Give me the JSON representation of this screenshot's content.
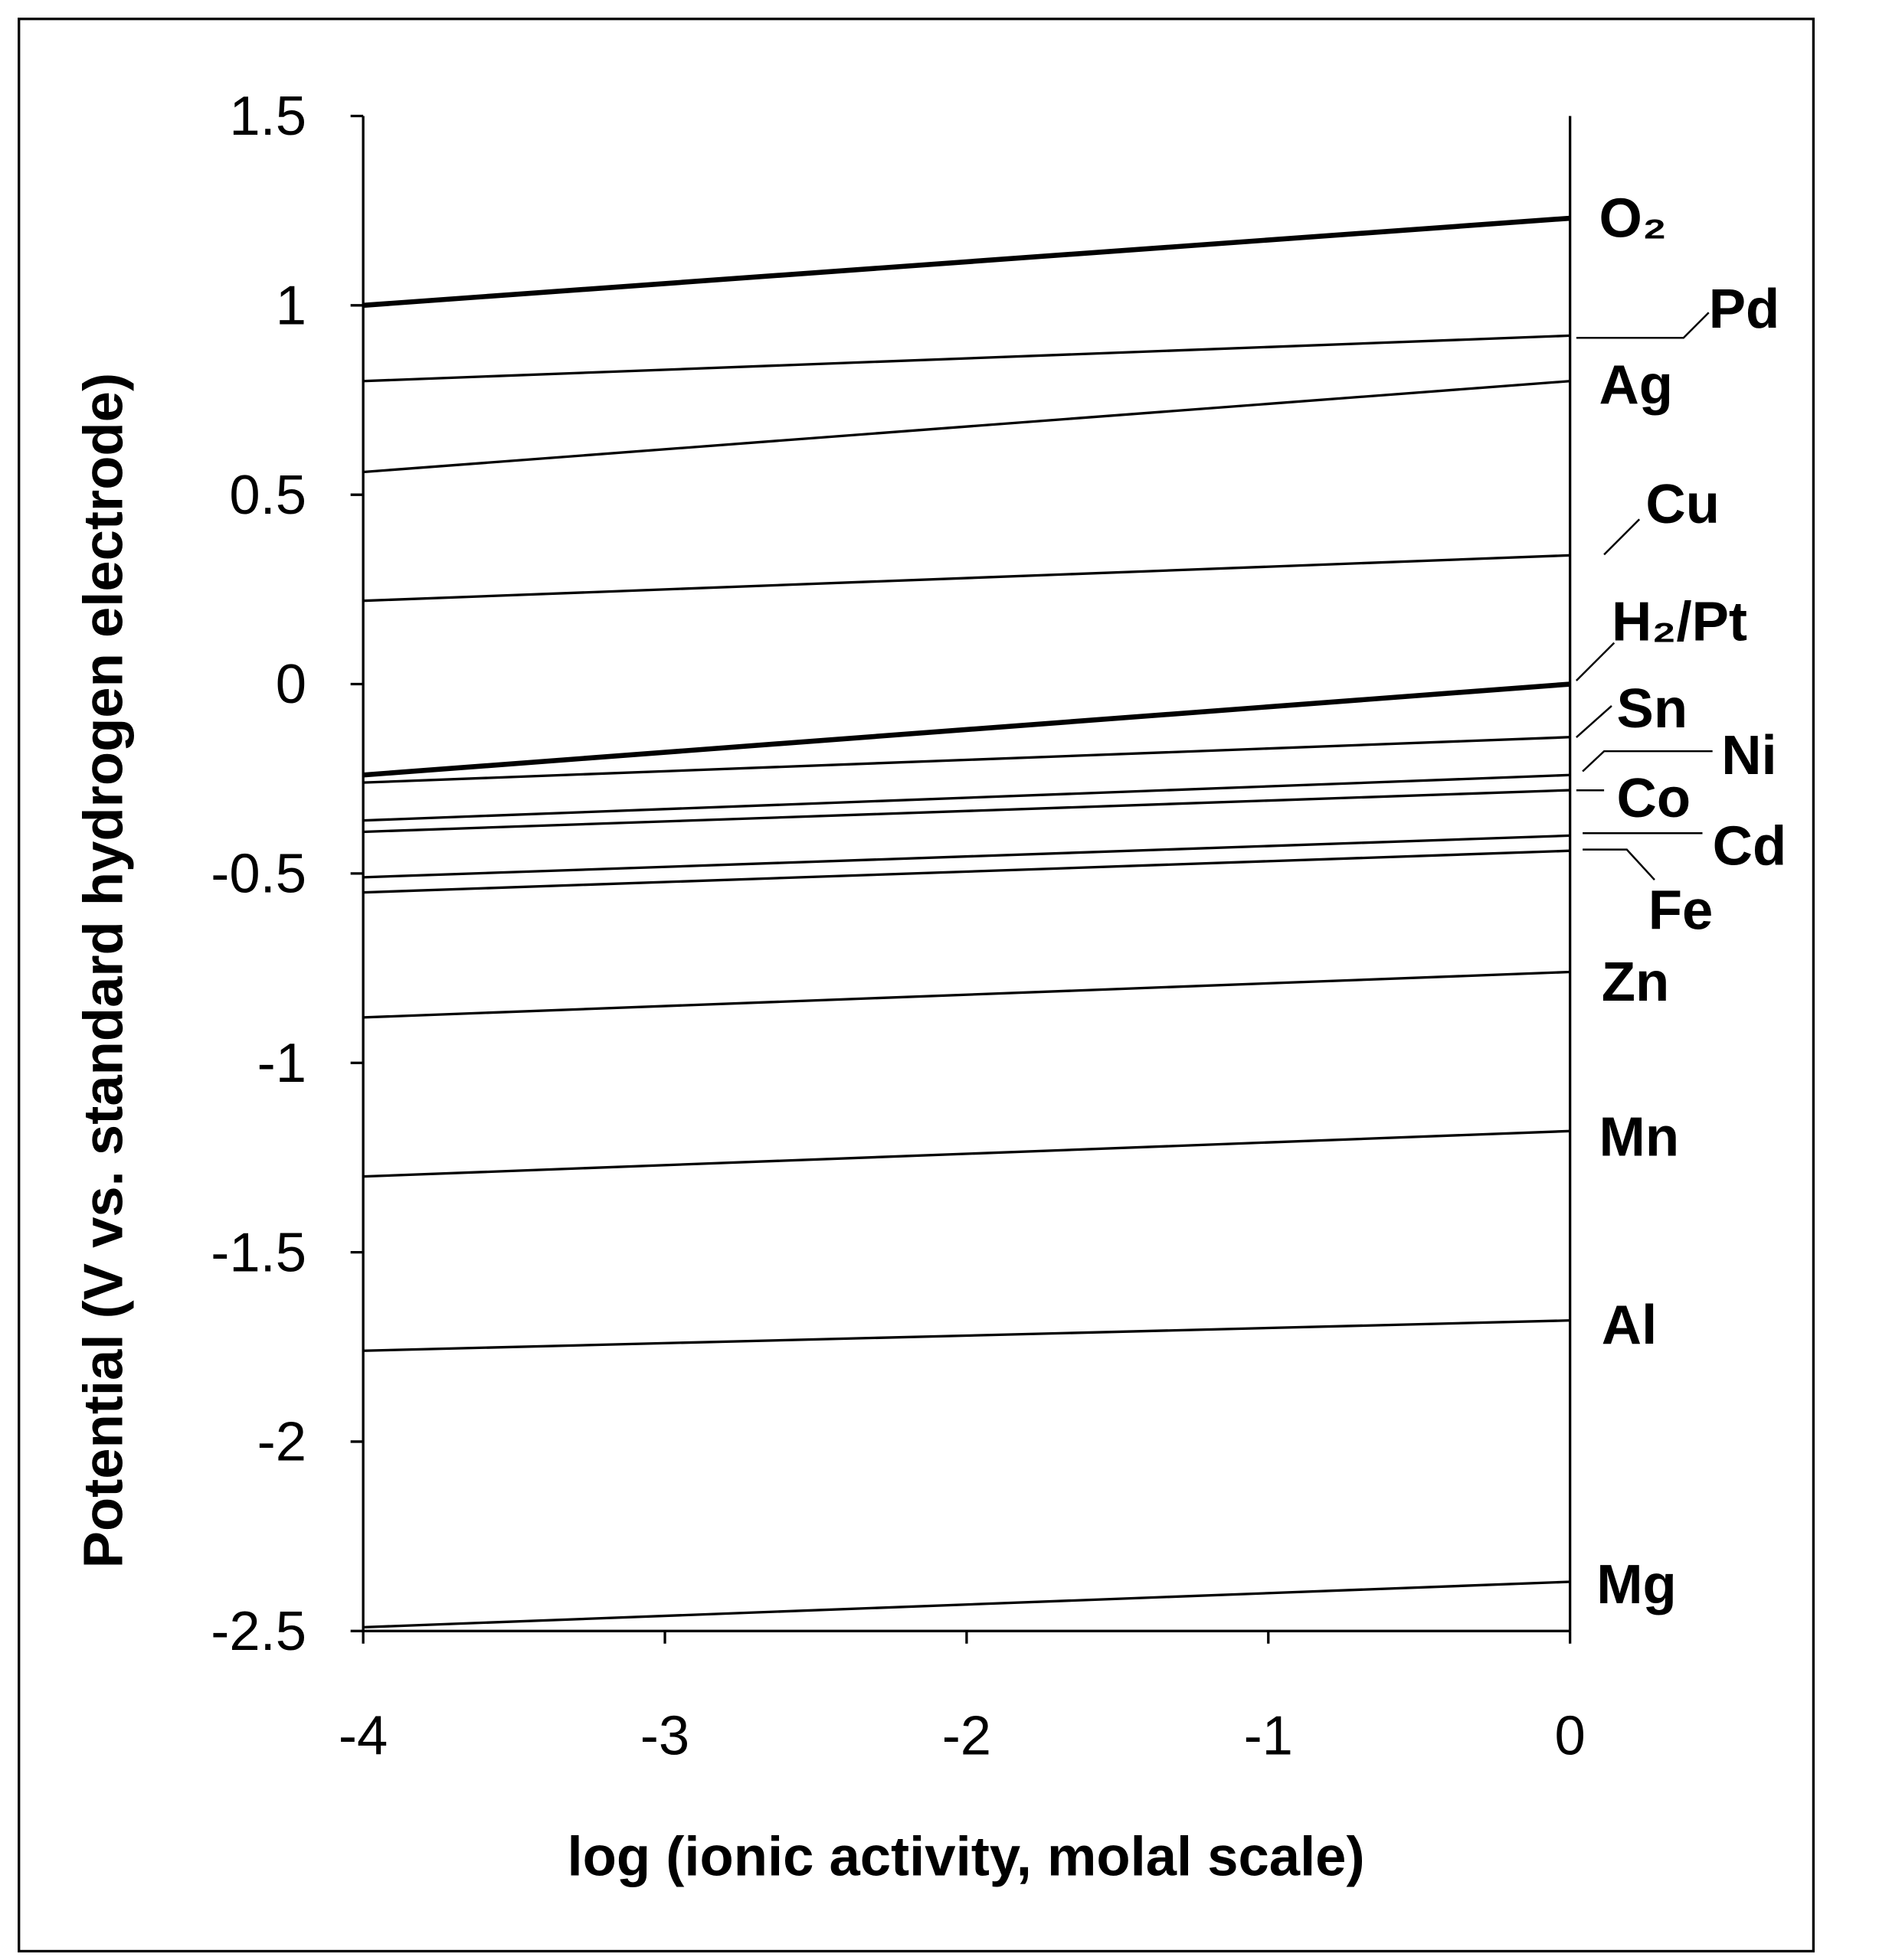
{
  "chart_data": {
    "type": "line",
    "title": "",
    "xlabel": "log (ionic activity, molal scale)",
    "ylabel": "Potential (V vs. standard hydrogen electrode)",
    "xlim": [
      -4,
      0
    ],
    "ylim": [
      -2.5,
      1.5
    ],
    "xticks": [
      "-4",
      "-3",
      "-2",
      "-1",
      "0"
    ],
    "yticks": [
      "1.5",
      "1",
      "0.5",
      "0",
      "-0.5",
      "-1",
      "-1.5",
      "-2",
      "-2.5"
    ],
    "grid": false,
    "legend": "none; series labeled at right end of lines",
    "line_color": "#000000",
    "series": [
      {
        "name": "O₂",
        "x": [
          -4,
          0
        ],
        "y": [
          1.0,
          1.23
        ],
        "bold": true
      },
      {
        "name": "Pd",
        "x": [
          -4,
          0
        ],
        "y": [
          0.8,
          0.92
        ]
      },
      {
        "name": "Ag",
        "x": [
          -4,
          0
        ],
        "y": [
          0.56,
          0.8
        ]
      },
      {
        "name": "Cu",
        "x": [
          -4,
          0
        ],
        "y": [
          0.22,
          0.34
        ]
      },
      {
        "name": "H₂/Pt",
        "x": [
          -4,
          0
        ],
        "y": [
          -0.24,
          0.0
        ],
        "bold": true
      },
      {
        "name": "Sn",
        "x": [
          -4,
          0
        ],
        "y": [
          -0.26,
          -0.14
        ]
      },
      {
        "name": "Ni",
        "x": [
          -4,
          0
        ],
        "y": [
          -0.36,
          -0.24
        ]
      },
      {
        "name": "Co",
        "x": [
          -4,
          0
        ],
        "y": [
          -0.39,
          -0.28
        ]
      },
      {
        "name": "Cd",
        "x": [
          -4,
          0
        ],
        "y": [
          -0.51,
          -0.4
        ]
      },
      {
        "name": "Fe",
        "x": [
          -4,
          0
        ],
        "y": [
          -0.55,
          -0.44
        ]
      },
      {
        "name": "Zn",
        "x": [
          -4,
          0
        ],
        "y": [
          -0.88,
          -0.76
        ]
      },
      {
        "name": "Mn",
        "x": [
          -4,
          0
        ],
        "y": [
          -1.3,
          -1.18
        ]
      },
      {
        "name": "Al",
        "x": [
          -4,
          0
        ],
        "y": [
          -1.76,
          -1.68
        ]
      },
      {
        "name": "Mg",
        "x": [
          -4,
          0
        ],
        "y": [
          -2.49,
          -2.37
        ]
      }
    ]
  }
}
